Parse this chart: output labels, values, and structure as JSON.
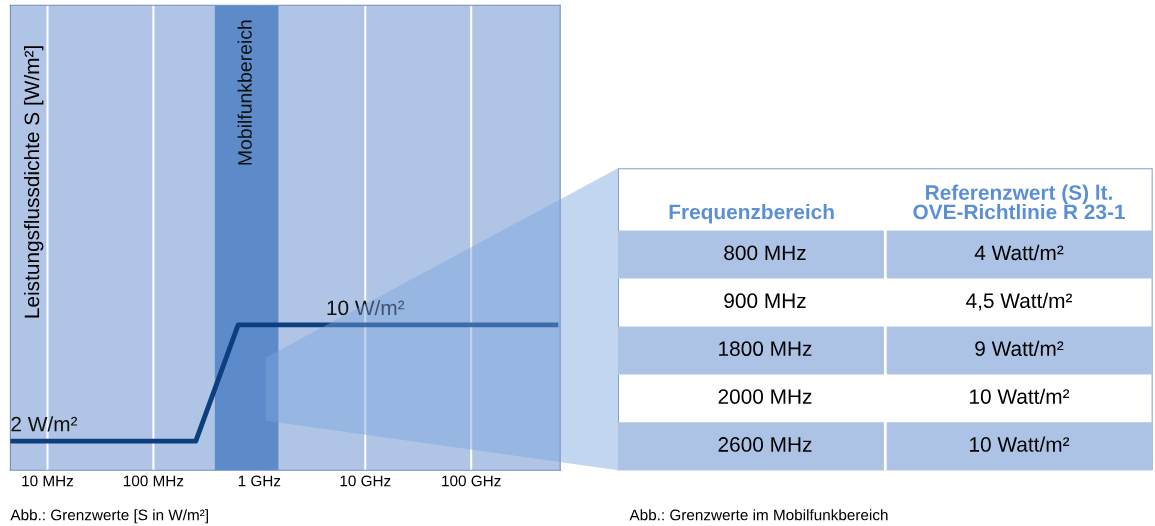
{
  "chart_data": [
    {
      "type": "line",
      "ylabel": "Leistungsflussdichte S [W/m²]",
      "ylim": [
        0,
        32
      ],
      "tick_labels": "x",
      "grid": "x",
      "categories": [
        null,
        null,
        "10 MHz",
        null,
        null,
        null,
        null,
        "100 MHz",
        null,
        null,
        null,
        null,
        "1 GHz",
        null,
        null,
        null,
        null,
        "10 GHz",
        null,
        null,
        null,
        null,
        "100 GHz",
        null,
        null,
        null,
        null
      ],
      "series": [
        {
          "color": "#0d3f7f",
          "values": [
            2,
            2,
            2,
            2,
            2,
            2,
            2,
            2,
            2,
            2,
            6,
            10,
            10,
            10,
            10,
            10,
            10,
            10,
            10,
            10,
            10,
            10,
            10,
            10,
            10,
            10,
            10
          ],
          "value_labels": [
            "2 W/m²",
            null,
            null,
            null,
            null,
            null,
            null,
            null,
            null,
            null,
            null,
            null,
            null,
            null,
            null,
            null,
            null,
            "10 W/m²",
            null,
            null,
            null,
            null,
            null,
            null,
            null,
            null,
            null
          ]
        }
      ],
      "annotations": [
        "Mobilfunkbereich",
        "Abb.: Grenzwerte [S in W/m²]"
      ]
    },
    {
      "type": "other",
      "ylabel": "Frequenzbereich",
      "categories": [
        "Referenzwert (S) lt.\nOVE-Richtlinie R 23-1"
      ],
      "y_categories": [
        "800 MHz",
        "900 MHz",
        "1800 MHz",
        "2000 MHz",
        "2600 MHz"
      ],
      "cell_labels": [
        [
          "4 Watt/m²"
        ],
        [
          "4,5 Watt/m²"
        ],
        [
          "9 Watt/m²"
        ],
        [
          "10 Watt/m²"
        ],
        [
          "10 Watt/m²"
        ]
      ],
      "annotations": [
        "Abb.: Grenzwerte im Mobilfunkbereich"
      ]
    }
  ]
}
